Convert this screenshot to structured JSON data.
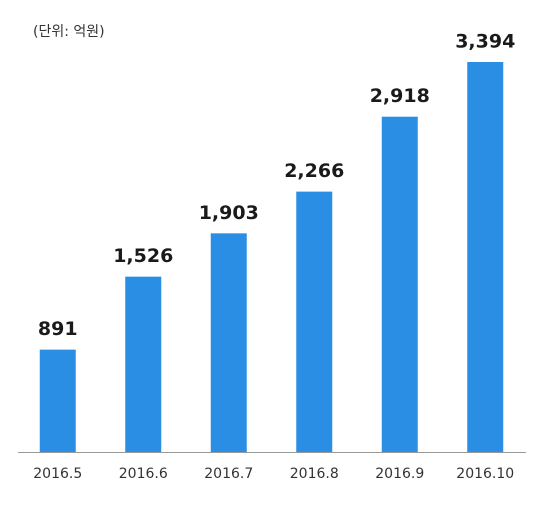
{
  "chart_data": {
    "type": "bar",
    "subtitle": "(단위: 억원)",
    "categories": [
      "2016.5",
      "2016.6",
      "2016.7",
      "2016.8",
      "2016.9",
      "2016.10"
    ],
    "values": [
      891,
      1526,
      1903,
      2266,
      2918,
      3394
    ],
    "value_labels": [
      "891",
      "1,526",
      "1,903",
      "2,266",
      "2,918",
      "3,394"
    ],
    "color": "#2a8fe4"
  }
}
